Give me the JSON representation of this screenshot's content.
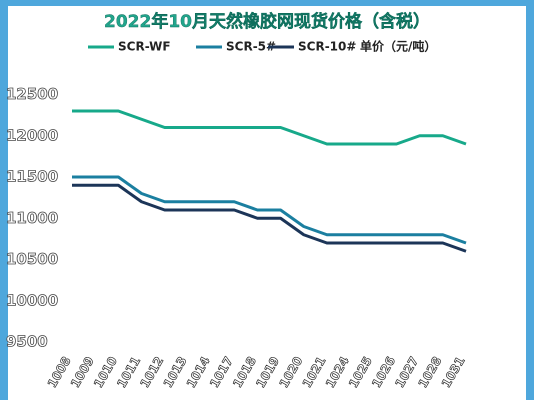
{
  "chart_data": {
    "type": "line",
    "title": "2022年10月天然橡胶网现货价格（含税）",
    "unit_label": "单价（元/吨）",
    "categories": [
      "1008",
      "1009",
      "1010",
      "1011",
      "1012",
      "1013",
      "1014",
      "1017",
      "1018",
      "1019",
      "1020",
      "1021",
      "1024",
      "1025",
      "1026",
      "1027",
      "1028",
      "1031"
    ],
    "series": [
      {
        "name": "SCR-WF",
        "color": "#17a98a",
        "values": [
          12300,
          12300,
          12300,
          12200,
          12100,
          12100,
          12100,
          12100,
          12100,
          12100,
          12000,
          11900,
          11900,
          11900,
          11900,
          12000,
          12000,
          11900
        ]
      },
      {
        "name": "SCR-5#",
        "color": "#1b7fa0",
        "values": [
          11500,
          11500,
          11500,
          11300,
          11200,
          11200,
          11200,
          11200,
          11100,
          11100,
          10900,
          10800,
          10800,
          10800,
          10800,
          10800,
          10800,
          10700
        ]
      },
      {
        "name": "SCR-10#",
        "color": "#1c3558",
        "values": [
          11400,
          11400,
          11400,
          11200,
          11100,
          11100,
          11100,
          11100,
          11000,
          11000,
          10800,
          10700,
          10700,
          10700,
          10700,
          10700,
          10700,
          10600
        ]
      }
    ],
    "ylim": [
      9500,
      12700
    ],
    "yticks": [
      9500,
      10000,
      10500,
      11000,
      11500,
      12000,
      12500
    ],
    "grid": false
  }
}
